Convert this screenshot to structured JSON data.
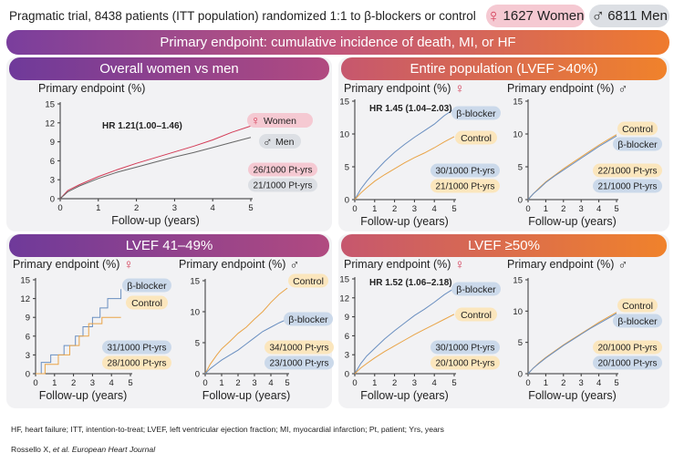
{
  "header": {
    "description": "Pragmatic trial, 8438 patients (ITT population) randomized 1:1 to β-blockers or control",
    "women_count": "1627 Women",
    "men_count": "6811 Men",
    "banner": "Primary endpoint: cumulative incidence of death, MI, or HF"
  },
  "panels": {
    "overall": {
      "title": "Overall women vs men"
    },
    "entire": {
      "title": "Entire population (LVEF >40%)"
    },
    "lvef41": {
      "title": "LVEF 41–49%"
    },
    "lvef50": {
      "title": "LVEF ≥50%"
    }
  },
  "footer": {
    "abbrev": "HF, heart failure; ITT, intention-to-treat; LVEF, left ventricular ejection fraction; MI, myocardial infarction; Pt, patient; Yrs, years",
    "citation_authors": "Rossello X, ",
    "citation_etal": "et al. European Heart Journal"
  },
  "colors": {
    "women": "#d33a55",
    "men": "#666666",
    "bb": "#6a8fc0",
    "control": "#e9a447",
    "women_tag": "#f5c9d2",
    "men_tag": "#dcdfe4",
    "bb_tag": "#cbd9ea",
    "control_tag": "#fbe6bd"
  },
  "chart_data": [
    {
      "id": "overall",
      "type": "line",
      "ylabel": "Primary endpoint (%)",
      "xlabel": "Follow-up (years)",
      "xlim": [
        0,
        5
      ],
      "ylim": [
        0,
        15
      ],
      "xticks": [
        0,
        1,
        2,
        3,
        4,
        5
      ],
      "yticks": [
        0,
        3,
        6,
        9,
        12,
        15
      ],
      "hr": "HR 1.21(1.00–1.46)",
      "series": [
        {
          "name": "Women",
          "symbol": "♀",
          "color": "women",
          "tag": "women_tag",
          "x": [
            0,
            0.2,
            0.5,
            1,
            1.5,
            2,
            2.5,
            3,
            3.5,
            4,
            4.5,
            5
          ],
          "y": [
            0,
            1.3,
            2.2,
            3.5,
            4.6,
            5.6,
            6.5,
            7.4,
            8.3,
            9.3,
            10.5,
            11.5
          ]
        },
        {
          "name": "Men",
          "symbol": "♂",
          "color": "men",
          "tag": "men_tag",
          "x": [
            0,
            0.2,
            0.5,
            1,
            1.5,
            2,
            2.5,
            3,
            3.5,
            4,
            4.5,
            5
          ],
          "y": [
            0,
            1.1,
            2.0,
            3.2,
            4.2,
            5.0,
            5.8,
            6.6,
            7.3,
            8.1,
            8.9,
            9.7
          ]
        }
      ],
      "rates": [
        {
          "text": "26/1000 Pt-yrs",
          "tag": "women_tag"
        },
        {
          "text": "21/1000 Pt-yrs",
          "tag": "men_tag"
        }
      ]
    },
    {
      "id": "entire_women",
      "type": "line",
      "sex_symbol": "♀",
      "ylabel": "Primary endpoint (%)",
      "xlabel": "Follow-up (years)",
      "xlim": [
        0,
        5
      ],
      "ylim": [
        0,
        15
      ],
      "xticks": [
        0,
        1,
        2,
        3,
        4,
        5
      ],
      "yticks": [
        0,
        5,
        10,
        15
      ],
      "hr": "HR 1.45 (1.04–2.03)",
      "series": [
        {
          "name": "β-blocker",
          "color": "bb",
          "tag": "bb_tag",
          "x": [
            0,
            0.3,
            0.6,
            1,
            1.5,
            2,
            2.5,
            3,
            3.5,
            4,
            4.5,
            5
          ],
          "y": [
            0,
            1.6,
            2.8,
            4.2,
            5.8,
            7.2,
            8.4,
            9.5,
            10.5,
            11.5,
            12.8,
            13.8
          ]
        },
        {
          "name": "Control",
          "color": "control",
          "tag": "control_tag",
          "x": [
            0,
            0.3,
            0.6,
            1,
            1.5,
            2,
            2.5,
            3,
            3.5,
            4,
            4.5,
            5
          ],
          "y": [
            0,
            1.0,
            1.8,
            2.8,
            3.8,
            4.7,
            5.6,
            6.4,
            7.1,
            7.9,
            8.8,
            9.6
          ]
        }
      ],
      "rates": [
        {
          "text": "30/1000 Pt-yrs",
          "tag": "bb_tag"
        },
        {
          "text": "21/1000 Pt-yrs",
          "tag": "control_tag"
        }
      ]
    },
    {
      "id": "entire_men",
      "type": "line",
      "sex_symbol": "♂",
      "ylabel": "Primary endpoint (%)",
      "xlabel": "Follow-up (years)",
      "xlim": [
        0,
        5
      ],
      "ylim": [
        0,
        15
      ],
      "xticks": [
        0,
        1,
        2,
        3,
        4,
        5
      ],
      "yticks": [
        0,
        5,
        10,
        15
      ],
      "series": [
        {
          "name": "Control",
          "color": "control",
          "tag": "control_tag",
          "x": [
            0,
            0.3,
            0.6,
            1,
            1.5,
            2,
            2.5,
            3,
            3.5,
            4,
            4.5,
            5
          ],
          "y": [
            0,
            0.9,
            1.7,
            2.7,
            3.7,
            4.7,
            5.6,
            6.5,
            7.4,
            8.3,
            9.1,
            9.9
          ]
        },
        {
          "name": "β-blocker",
          "color": "bb",
          "tag": "bb_tag",
          "x": [
            0,
            0.3,
            0.6,
            1,
            1.5,
            2,
            2.5,
            3,
            3.5,
            4,
            4.5,
            5
          ],
          "y": [
            0,
            0.9,
            1.6,
            2.6,
            3.6,
            4.5,
            5.4,
            6.3,
            7.2,
            8.1,
            8.9,
            9.7
          ]
        }
      ],
      "rates": [
        {
          "text": "22/1000 Pt-yrs",
          "tag": "control_tag"
        },
        {
          "text": "21/1000 Pt-yrs",
          "tag": "bb_tag"
        }
      ]
    },
    {
      "id": "lvef41_women",
      "type": "line",
      "sex_symbol": "♀",
      "ylabel": "Primary endpoint (%)",
      "xlabel": "Follow-up (years)",
      "xlim": [
        0,
        5
      ],
      "ylim": [
        0,
        15
      ],
      "xticks": [
        0,
        1,
        2,
        3,
        4,
        5
      ],
      "yticks": [
        0,
        3,
        6,
        9,
        12,
        15
      ],
      "series": [
        {
          "name": "β-blocker",
          "color": "bb",
          "tag": "bb_tag",
          "step": true,
          "x": [
            0,
            0.3,
            0.8,
            1.5,
            2.1,
            2.5,
            3.0,
            3.4,
            3.8,
            4.5
          ],
          "y": [
            0,
            1.8,
            3.0,
            4.5,
            6.0,
            7.5,
            9.0,
            10.5,
            12.0,
            13.5
          ]
        },
        {
          "name": "Control",
          "color": "control",
          "tag": "control_tag",
          "step": true,
          "x": [
            0,
            0.5,
            1.2,
            1.8,
            2.3,
            2.8,
            3.5,
            4.5
          ],
          "y": [
            0,
            1.5,
            3.0,
            4.5,
            6.0,
            8.0,
            9.0,
            9.0
          ]
        }
      ],
      "rates": [
        {
          "text": "31/1000 Pt-yrs",
          "tag": "bb_tag"
        },
        {
          "text": "28/1000 Pt-yrs",
          "tag": "control_tag"
        }
      ]
    },
    {
      "id": "lvef41_men",
      "type": "line",
      "sex_symbol": "♂",
      "ylabel": "Primary endpoint (%)",
      "xlabel": "Follow-up (years)",
      "xlim": [
        0,
        5
      ],
      "ylim": [
        0,
        15
      ],
      "xticks": [
        0,
        1,
        2,
        3,
        4,
        5
      ],
      "yticks": [
        0,
        5,
        10,
        15
      ],
      "series": [
        {
          "name": "Control",
          "color": "control",
          "tag": "control_tag",
          "x": [
            0,
            0.3,
            0.7,
            1,
            1.5,
            2,
            2.5,
            3,
            3.5,
            4,
            4.5,
            5
          ],
          "y": [
            0,
            1.5,
            3.0,
            4.0,
            5.2,
            6.5,
            7.5,
            8.8,
            10.0,
            11.5,
            12.8,
            13.8
          ]
        },
        {
          "name": "β-blocker",
          "color": "bb",
          "tag": "bb_tag",
          "x": [
            0,
            0.3,
            0.7,
            1,
            1.5,
            2,
            2.5,
            3,
            3.5,
            4,
            4.5,
            5
          ],
          "y": [
            0,
            0.8,
            1.6,
            2.2,
            3.0,
            3.8,
            4.8,
            5.8,
            6.8,
            7.5,
            8.2,
            8.8
          ]
        }
      ],
      "rates": [
        {
          "text": "34/1000 Pt-yrs",
          "tag": "control_tag"
        },
        {
          "text": "23/1000 Pt-yrs",
          "tag": "bb_tag"
        }
      ]
    },
    {
      "id": "lvef50_women",
      "type": "line",
      "sex_symbol": "♀",
      "ylabel": "Primary endpoint (%)",
      "xlabel": "Follow-up (years)",
      "xlim": [
        0,
        5
      ],
      "ylim": [
        0,
        15
      ],
      "xticks": [
        0,
        1,
        2,
        3,
        4,
        5
      ],
      "yticks": [
        0,
        3,
        6,
        9,
        12,
        15
      ],
      "hr": "HR 1.52 (1.06–2.18)",
      "series": [
        {
          "name": "β-blocker",
          "color": "bb",
          "tag": "bb_tag",
          "x": [
            0,
            0.3,
            0.6,
            1,
            1.5,
            2,
            2.5,
            3,
            3.5,
            4,
            4.5,
            5
          ],
          "y": [
            0,
            1.6,
            2.8,
            4.0,
            5.5,
            6.8,
            8.0,
            9.2,
            10.2,
            11.3,
            12.5,
            13.5
          ]
        },
        {
          "name": "Control",
          "color": "control",
          "tag": "control_tag",
          "x": [
            0,
            0.3,
            0.6,
            1,
            1.5,
            2,
            2.5,
            3,
            3.5,
            4,
            4.5,
            5
          ],
          "y": [
            0,
            0.9,
            1.6,
            2.5,
            3.5,
            4.4,
            5.3,
            6.2,
            7.0,
            7.8,
            8.6,
            9.4
          ]
        }
      ],
      "rates": [
        {
          "text": "30/1000 Pt-yrs",
          "tag": "bb_tag"
        },
        {
          "text": "20/1000 Pt-yrs",
          "tag": "control_tag"
        }
      ]
    },
    {
      "id": "lvef50_men",
      "type": "line",
      "sex_symbol": "♂",
      "ylabel": "Primary endpoint (%)",
      "xlabel": "Follow-up (years)",
      "xlim": [
        0,
        5
      ],
      "ylim": [
        0,
        15
      ],
      "xticks": [
        0,
        1,
        2,
        3,
        4,
        5
      ],
      "yticks": [
        0,
        5,
        10,
        15
      ],
      "series": [
        {
          "name": "Control",
          "color": "control",
          "tag": "control_tag",
          "x": [
            0,
            0.3,
            0.6,
            1,
            1.5,
            2,
            2.5,
            3,
            3.5,
            4,
            4.5,
            5
          ],
          "y": [
            0,
            0.9,
            1.7,
            2.6,
            3.6,
            4.6,
            5.5,
            6.4,
            7.3,
            8.2,
            9.0,
            9.8
          ]
        },
        {
          "name": "β-blocker",
          "color": "bb",
          "tag": "bb_tag",
          "x": [
            0,
            0.3,
            0.6,
            1,
            1.5,
            2,
            2.5,
            3,
            3.5,
            4,
            4.5,
            5
          ],
          "y": [
            0,
            0.9,
            1.6,
            2.5,
            3.5,
            4.5,
            5.4,
            6.3,
            7.2,
            8.0,
            8.8,
            9.6
          ]
        }
      ],
      "rates": [
        {
          "text": "20/1000 Pt-yrs",
          "tag": "control_tag"
        },
        {
          "text": "20/1000 Pt-yrs",
          "tag": "bb_tag"
        }
      ]
    }
  ]
}
